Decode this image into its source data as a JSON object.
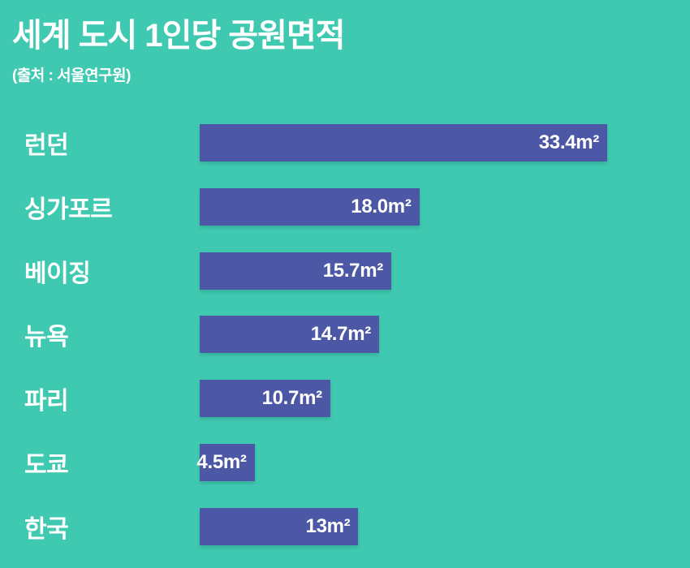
{
  "header": {
    "title": "세계 도시 1인당 공원면적",
    "source": "(출처 : 서울연구원)"
  },
  "colors": {
    "background": "#40C9B1",
    "bar": "#4C57A6",
    "text": "#FFFFFF"
  },
  "chart_data": {
    "type": "bar",
    "orientation": "horizontal",
    "title": "세계 도시 1인당 공원면적",
    "subtitle": "(출처 : 서울연구원)",
    "unit": "m²",
    "categories": [
      "런던",
      "싱가포르",
      "베이징",
      "뉴욕",
      "파리",
      "도쿄",
      "한국"
    ],
    "values": [
      33.4,
      18.0,
      15.7,
      14.7,
      10.7,
      4.5,
      13
    ],
    "value_labels": [
      "33.4m²",
      "18.0m²",
      "15.7m²",
      "14.7m²",
      "10.7m²",
      "4.5m²",
      "13m²"
    ],
    "xlim": [
      0,
      33.4
    ],
    "grid": false,
    "legend": false,
    "value_label_position": "inside-right"
  }
}
